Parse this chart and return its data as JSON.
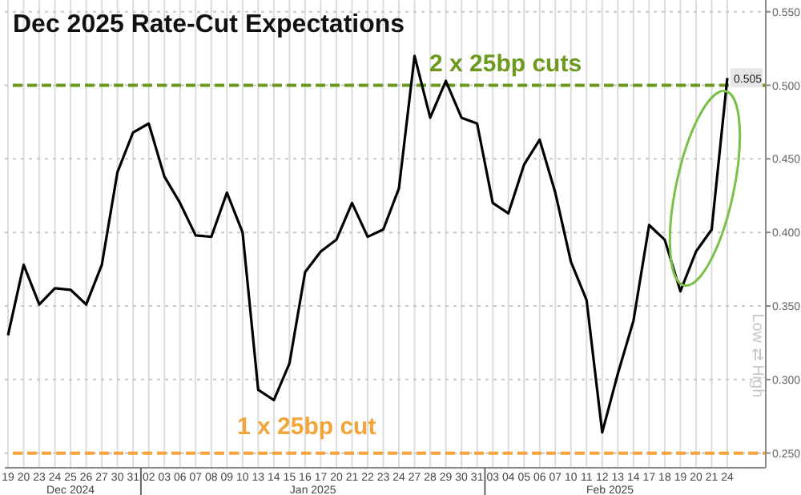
{
  "chart_data": {
    "type": "line",
    "title": "Dec 2025 Rate-Cut Expectations",
    "categories": [
      "19",
      "20",
      "23",
      "24",
      "25",
      "26",
      "27",
      "30",
      "31",
      "02",
      "03",
      "06",
      "07",
      "08",
      "09",
      "10",
      "13",
      "14",
      "15",
      "16",
      "17",
      "20",
      "21",
      "22",
      "23",
      "24",
      "27",
      "28",
      "29",
      "30",
      "31",
      "03",
      "04",
      "05",
      "06",
      "07",
      "10",
      "11",
      "12",
      "13",
      "14",
      "17",
      "18",
      "19",
      "20",
      "21",
      "24"
    ],
    "series": [
      {
        "color": "#000000",
        "values": [
          0.33,
          0.378,
          0.351,
          0.362,
          0.361,
          0.351,
          0.378,
          0.441,
          0.468,
          0.474,
          0.438,
          0.42,
          0.398,
          0.397,
          0.427,
          0.4,
          0.293,
          0.286,
          0.311,
          0.373,
          0.387,
          0.395,
          0.42,
          0.397,
          0.402,
          0.43,
          0.52,
          0.478,
          0.503,
          0.478,
          0.474,
          0.42,
          0.413,
          0.446,
          0.463,
          0.427,
          0.38,
          0.354,
          0.264,
          0.304,
          0.34,
          0.405,
          0.395,
          0.36,
          0.387,
          0.402,
          0.505
        ],
        "value_labels": [
          null,
          null,
          null,
          null,
          null,
          null,
          null,
          null,
          null,
          null,
          null,
          null,
          null,
          null,
          null,
          null,
          null,
          null,
          null,
          null,
          null,
          null,
          null,
          null,
          null,
          null,
          null,
          null,
          null,
          null,
          null,
          null,
          null,
          null,
          null,
          null,
          null,
          null,
          null,
          null,
          null,
          null,
          null,
          null,
          null,
          null,
          "0.505"
        ]
      }
    ],
    "ylim": [
      0.24,
      0.558
    ],
    "yticks": [
      {
        "value": 0.25,
        "label": "0.250"
      },
      {
        "value": 0.3,
        "label": "0.300"
      },
      {
        "value": 0.35,
        "label": "0.350"
      },
      {
        "value": 0.4,
        "label": "0.400"
      },
      {
        "value": 0.45,
        "label": "0.450"
      },
      {
        "value": 0.5,
        "label": "0.500"
      },
      {
        "value": 0.55,
        "label": "0.550"
      }
    ],
    "ref_lines": [
      {
        "axis": "y",
        "value": 0.5,
        "label": "2 x 25bp cuts",
        "color": "#6b9a1f",
        "line_style": "dashed"
      },
      {
        "axis": "y",
        "value": 0.25,
        "label": "1 x 25bp cut",
        "color": "#f3a53a",
        "line_style": "dashed"
      }
    ],
    "annotations": [
      "Dec 2024",
      "Jan 2025",
      "Feb 2025",
      "Low ⇄ High"
    ],
    "grid": true
  }
}
